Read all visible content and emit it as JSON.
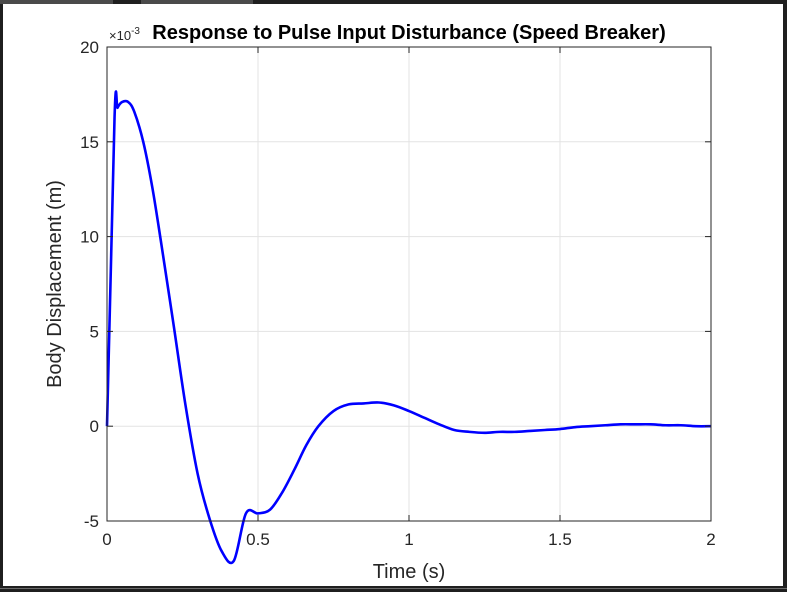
{
  "chart_data": {
    "type": "line",
    "title": "Response to Pulse Input Disturbance (Speed Breaker)",
    "xlabel": "Time (s)",
    "ylabel": "Body Displacement (m)",
    "y_exponent_label": "×10",
    "y_exponent_power": "-3",
    "xlim": [
      0,
      2
    ],
    "ylim": [
      -5,
      20
    ],
    "x_ticks": [
      "0",
      "0.5",
      "1",
      "1.5",
      "2"
    ],
    "y_ticks": [
      "-5",
      "0",
      "5",
      "10",
      "15",
      "20"
    ],
    "grid": true,
    "line_color": "#0000ff",
    "series": [
      {
        "x": [
          0,
          0.025,
          0.035,
          0.05,
          0.07,
          0.09,
          0.12,
          0.15,
          0.18,
          0.22,
          0.26,
          0.3,
          0.34,
          0.38,
          0.42,
          0.46,
          0.5,
          0.54,
          0.58,
          0.62,
          0.66,
          0.7,
          0.75,
          0.8,
          0.85,
          0.9,
          0.95,
          1.0,
          1.05,
          1.1,
          1.15,
          1.2,
          1.25,
          1.3,
          1.35,
          1.4,
          1.45,
          1.5,
          1.55,
          1.6,
          1.65,
          1.7,
          1.75,
          1.8,
          1.85,
          1.9,
          1.95,
          2.0
        ],
        "y": [
          0,
          16.3,
          16.8,
          17.1,
          17.1,
          16.6,
          15.0,
          12.6,
          9.6,
          5.4,
          1.1,
          -2.5,
          -4.9,
          -6.6,
          -7.1,
          -4.6,
          -4.6,
          -4.4,
          -3.5,
          -2.3,
          -1.0,
          0.0,
          0.8,
          1.15,
          1.2,
          1.25,
          1.1,
          0.8,
          0.45,
          0.1,
          -0.2,
          -0.3,
          -0.35,
          -0.3,
          -0.3,
          -0.25,
          -0.2,
          -0.15,
          -0.05,
          0.0,
          0.05,
          0.1,
          0.1,
          0.1,
          0.05,
          0.05,
          0.0,
          0.0
        ]
      }
    ]
  }
}
